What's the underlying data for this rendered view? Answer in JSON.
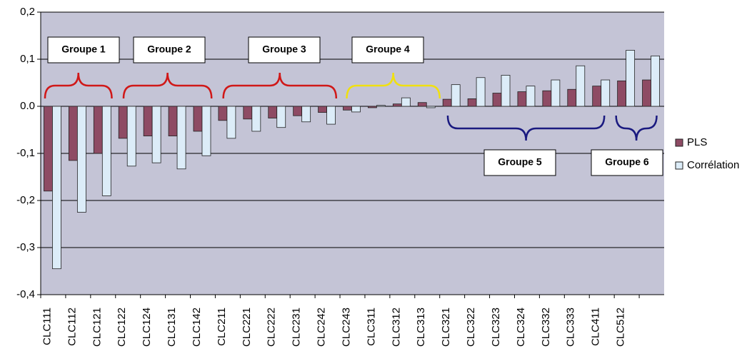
{
  "chart_data": {
    "type": "bar",
    "categories": [
      "CLC111",
      "CLC112",
      "CLC121",
      "CLC122",
      "CLC124",
      "CLC131",
      "CLC142",
      "CLC211",
      "CLC221",
      "CLC222",
      "CLC231",
      "CLC242",
      "CLC243",
      "CLC311",
      "CLC312",
      "CLC313",
      "CLC321",
      "CLC322",
      "CLC323",
      "CLC324",
      "CLC332",
      "CLC333",
      "CLC411",
      "CLC512",
      null
    ],
    "series": [
      {
        "name": "PLS",
        "color": "#8e4b64",
        "values": [
          -0.18,
          -0.115,
          -0.1,
          -0.068,
          -0.063,
          -0.063,
          -0.053,
          -0.03,
          -0.027,
          -0.025,
          -0.02,
          -0.013,
          -0.008,
          -0.003,
          0.005,
          0.008,
          0.015,
          0.016,
          0.028,
          0.031,
          0.033,
          0.036,
          0.043,
          0.054,
          0.056
        ]
      },
      {
        "name": "Corrélation",
        "color": "#dcecf8",
        "values": [
          -0.345,
          -0.225,
          -0.19,
          -0.127,
          -0.12,
          -0.133,
          -0.105,
          -0.068,
          -0.053,
          -0.045,
          -0.033,
          -0.038,
          -0.012,
          0.002,
          0.018,
          -0.003,
          0.046,
          0.061,
          0.066,
          0.043,
          0.056,
          0.086,
          0.056,
          0.119,
          0.107
        ]
      }
    ],
    "ylim": [
      -0.4,
      0.2
    ],
    "yticks": [
      {
        "value": -0.4,
        "label": "-0,4"
      },
      {
        "value": -0.3,
        "label": "-0,3"
      },
      {
        "value": -0.2,
        "label": "-0,2"
      },
      {
        "value": -0.1,
        "label": "-0,1"
      },
      {
        "value": 0,
        "label": "0.0"
      },
      {
        "value": 0.1,
        "label": "0,1"
      },
      {
        "value": 0.2,
        "label": "0,2"
      }
    ],
    "grid": true,
    "legend": "right",
    "annotations": [
      "Groupe 1",
      "Groupe 2",
      "Groupe 3",
      "Groupe 4",
      "Groupe 5",
      "Groupe 6"
    ]
  }
}
